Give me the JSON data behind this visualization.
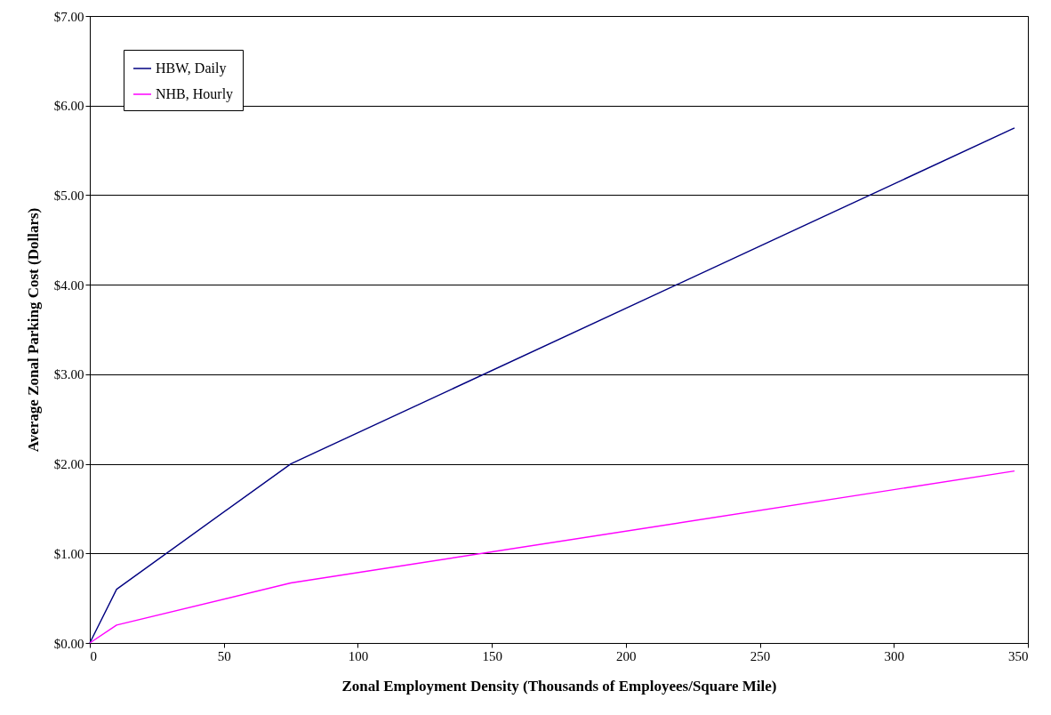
{
  "chart_data": {
    "type": "line",
    "xlabel": "Zonal Employment Density (Thousands of Employees/Square Mile)",
    "ylabel": "Average Zonal Parking Cost (Dollars)",
    "x": [
      0,
      10,
      75,
      345
    ],
    "series": [
      {
        "name": "HBW, Daily",
        "color": "#000080",
        "values": [
          0,
          0.6,
          2.0,
          5.75
        ]
      },
      {
        "name": "NHB, Hourly",
        "color": "#ff00ff",
        "values": [
          0,
          0.2,
          0.67,
          1.92
        ]
      }
    ],
    "xlim": [
      0,
      350
    ],
    "xticks": [
      0,
      50,
      100,
      150,
      200,
      250,
      300,
      350
    ],
    "ylim": [
      0,
      7
    ],
    "yticks": [
      {
        "value": 0,
        "label": "$0.00"
      },
      {
        "value": 1,
        "label": "$1.00"
      },
      {
        "value": 2,
        "label": "$2.00"
      },
      {
        "value": 3,
        "label": "$3.00"
      },
      {
        "value": 4,
        "label": "$4.00"
      },
      {
        "value": 5,
        "label": "$5.00"
      },
      {
        "value": 6,
        "label": "$6.00"
      },
      {
        "value": 7,
        "label": "$7.00"
      }
    ],
    "grid": "y",
    "legend": "top left",
    "marker": "none",
    "line_style": "solid"
  }
}
